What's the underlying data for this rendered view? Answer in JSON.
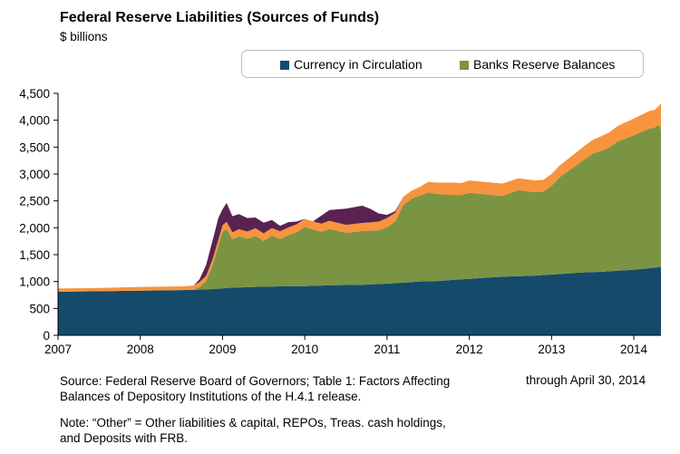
{
  "chart_data": {
    "type": "area",
    "stacked": true,
    "title": "Federal Reserve Liabilities (Sources of Funds)",
    "subtitle": "$ billions",
    "legend": {
      "placement": "top-right",
      "entries": [
        "Currency in Circulation",
        "Banks Reserve Balances"
      ]
    },
    "colors": {
      "currency": "#154a6b",
      "reserves": "#7b9443",
      "other_orange": "#f7943d",
      "other_purple": "#5a2250",
      "axis": "#000000"
    },
    "x_ticks": [
      "2007",
      "2008",
      "2009",
      "2010",
      "2011",
      "2012",
      "2013",
      "2014"
    ],
    "y_ticks": [
      "0",
      "500",
      "1,000",
      "1,500",
      "2,000",
      "2,500",
      "3,000",
      "3,500",
      "4,000",
      "4,500"
    ],
    "xlim": [
      2007.0,
      2014.33
    ],
    "ylim": [
      0,
      4500
    ],
    "grid": false,
    "x": [
      2007.0,
      2007.5,
      2008.0,
      2008.5,
      2008.65,
      2008.72,
      2008.8,
      2008.88,
      2008.95,
      2009.0,
      2009.05,
      2009.12,
      2009.2,
      2009.3,
      2009.4,
      2009.5,
      2009.6,
      2009.7,
      2009.8,
      2009.9,
      2010.0,
      2010.1,
      2010.2,
      2010.3,
      2010.5,
      2010.7,
      2010.8,
      2010.9,
      2011.0,
      2011.1,
      2011.2,
      2011.3,
      2011.4,
      2011.5,
      2011.6,
      2011.7,
      2011.8,
      2011.9,
      2012.0,
      2012.2,
      2012.4,
      2012.6,
      2012.8,
      2012.9,
      2013.0,
      2013.1,
      2013.2,
      2013.3,
      2013.4,
      2013.5,
      2013.6,
      2013.7,
      2013.8,
      2013.9,
      2014.0,
      2014.1,
      2014.2,
      2014.25,
      2014.3,
      2014.33
    ],
    "series": [
      {
        "name": "Currency in Circulation",
        "values": [
          810,
          820,
          830,
          840,
          845,
          850,
          855,
          860,
          865,
          870,
          880,
          885,
          890,
          895,
          900,
          905,
          905,
          910,
          910,
          915,
          915,
          920,
          925,
          930,
          935,
          940,
          945,
          955,
          960,
          970,
          980,
          990,
          1000,
          1005,
          1010,
          1020,
          1030,
          1040,
          1050,
          1070,
          1090,
          1100,
          1110,
          1120,
          1130,
          1140,
          1150,
          1160,
          1170,
          1175,
          1180,
          1190,
          1200,
          1210,
          1220,
          1235,
          1250,
          1260,
          1265,
          1270
        ]
      },
      {
        "name": "Banks Reserve Balances",
        "values": [
          0,
          0,
          0,
          0,
          0,
          50,
          150,
          450,
          800,
          1050,
          1100,
          900,
          950,
          900,
          950,
          850,
          950,
          880,
          950,
          1000,
          1100,
          1050,
          1000,
          1050,
          970,
          1000,
          1000,
          1000,
          1050,
          1150,
          1450,
          1550,
          1600,
          1650,
          1620,
          1600,
          1580,
          1570,
          1600,
          1550,
          1500,
          1600,
          1550,
          1550,
          1650,
          1800,
          1900,
          2000,
          2100,
          2200,
          2250,
          2300,
          2400,
          2450,
          2500,
          2550,
          2600,
          2600,
          2650,
          2550
        ]
      },
      {
        "values": [
          60,
          60,
          70,
          70,
          80,
          90,
          100,
          110,
          120,
          125,
          130,
          130,
          135,
          135,
          140,
          140,
          140,
          145,
          145,
          150,
          150,
          150,
          150,
          150,
          150,
          150,
          155,
          160,
          170,
          160,
          150,
          150,
          160,
          200,
          210,
          220,
          230,
          220,
          230,
          230,
          230,
          220,
          220,
          220,
          220,
          220,
          230,
          240,
          250,
          260,
          270,
          280,
          290,
          300,
          310,
          320,
          330,
          330,
          340,
          500
        ]
      },
      {
        "values": [
          0,
          0,
          0,
          0,
          0,
          50,
          200,
          350,
          400,
          300,
          350,
          300,
          280,
          250,
          200,
          200,
          150,
          100,
          100,
          50,
          0,
          0,
          150,
          200,
          300,
          320,
          250,
          150,
          60,
          30,
          0,
          0,
          0,
          0,
          0,
          0,
          0,
          0,
          0,
          0,
          0,
          0,
          0,
          0,
          0,
          0,
          0,
          0,
          0,
          0,
          0,
          0,
          0,
          0,
          0,
          0,
          0,
          0,
          0,
          0
        ]
      }
    ]
  },
  "footer": {
    "source_line1": "Source: Federal Reserve Board of Governors; Table 1:  Factors Affecting",
    "source_line2": "Balances of Depository Institutions of the H.4.1 release.",
    "through": "through April 30, 2014",
    "note_line1": "Note: “Other” = Other liabilities & capital, REPOs, Treas. cash holdings,",
    "note_line2": "and Deposits with FRB."
  }
}
